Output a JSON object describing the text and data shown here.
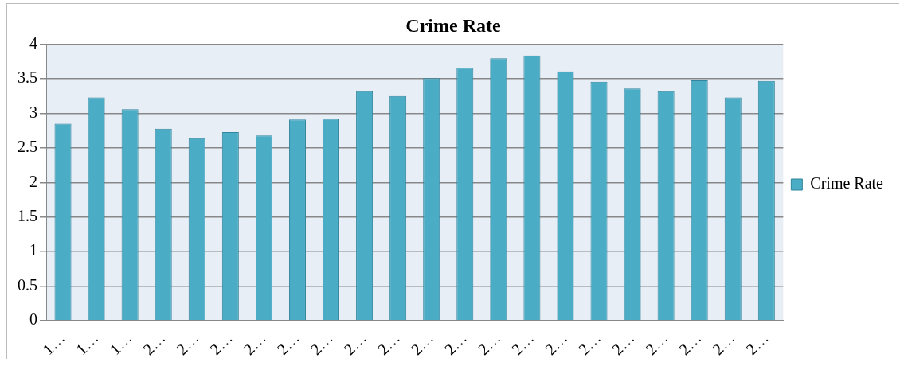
{
  "chart_data": {
    "type": "bar",
    "title": "Crime Rate",
    "categories": [
      "1…",
      "1…",
      "1…",
      "2…",
      "2…",
      "2…",
      "2…",
      "2…",
      "2…",
      "2…",
      "2…",
      "2…",
      "2…",
      "2…",
      "2…",
      "2…",
      "2…",
      "2…",
      "2…",
      "2…",
      "2…",
      "2…"
    ],
    "series": [
      {
        "name": "Crime Rate",
        "color": "#4bacc6",
        "values": [
          2.85,
          3.23,
          3.06,
          2.78,
          2.64,
          2.73,
          2.68,
          2.91,
          2.92,
          3.32,
          3.25,
          3.51,
          3.66,
          3.8,
          3.84,
          3.61,
          3.46,
          3.36,
          3.32,
          3.48,
          3.23,
          3.47
        ]
      }
    ],
    "ylim": [
      0,
      4
    ],
    "yticks": [
      0,
      0.5,
      1,
      1.5,
      2,
      2.5,
      3,
      3.5,
      4
    ],
    "grid": "y",
    "legend": "right"
  }
}
